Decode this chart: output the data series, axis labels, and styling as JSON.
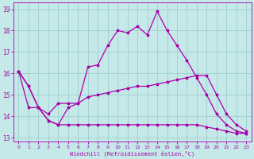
{
  "xlabel": "Windchill (Refroidissement éolien,°C)",
  "xlim": [
    -0.5,
    23.5
  ],
  "ylim": [
    12.8,
    19.3
  ],
  "yticks": [
    13,
    14,
    15,
    16,
    17,
    18,
    19
  ],
  "xticks": [
    0,
    1,
    2,
    3,
    4,
    5,
    6,
    7,
    8,
    9,
    10,
    11,
    12,
    13,
    14,
    15,
    16,
    17,
    18,
    19,
    20,
    21,
    22,
    23
  ],
  "bg_color": "#c5e8e8",
  "grid_color": "#9fcece",
  "line_color": "#aa00aa",
  "line1_x": [
    0,
    1,
    2,
    3,
    4,
    5,
    6,
    7,
    8,
    9,
    10,
    11,
    12,
    13,
    14,
    15,
    16,
    17,
    18,
    19,
    20,
    21,
    22,
    23
  ],
  "line1_y": [
    16.1,
    15.4,
    14.4,
    13.8,
    13.6,
    14.4,
    14.6,
    16.3,
    16.4,
    17.3,
    18.0,
    17.9,
    18.2,
    17.8,
    18.9,
    18.0,
    17.3,
    16.6,
    15.8,
    15.0,
    14.1,
    13.6,
    13.3,
    13.2
  ],
  "line2_x": [
    0,
    1,
    2,
    3,
    4,
    5,
    6,
    7,
    8,
    9,
    10,
    11,
    12,
    13,
    14,
    15,
    16,
    17,
    18,
    19,
    20,
    21,
    22,
    23
  ],
  "line2_y": [
    16.1,
    15.4,
    14.4,
    14.1,
    14.6,
    14.6,
    14.6,
    14.9,
    15.0,
    15.1,
    15.2,
    15.3,
    15.4,
    15.4,
    15.5,
    15.6,
    15.7,
    15.8,
    15.9,
    15.9,
    15.0,
    14.1,
    13.6,
    13.3
  ],
  "line3_x": [
    0,
    1,
    2,
    3,
    4,
    5,
    6,
    7,
    8,
    9,
    10,
    11,
    12,
    13,
    14,
    15,
    16,
    17,
    18,
    19,
    20,
    21,
    22,
    23
  ],
  "line3_y": [
    16.1,
    14.4,
    14.4,
    13.8,
    13.6,
    13.6,
    13.6,
    13.6,
    13.6,
    13.6,
    13.6,
    13.6,
    13.6,
    13.6,
    13.6,
    13.6,
    13.6,
    13.6,
    13.6,
    13.5,
    13.4,
    13.3,
    13.2,
    13.2
  ]
}
